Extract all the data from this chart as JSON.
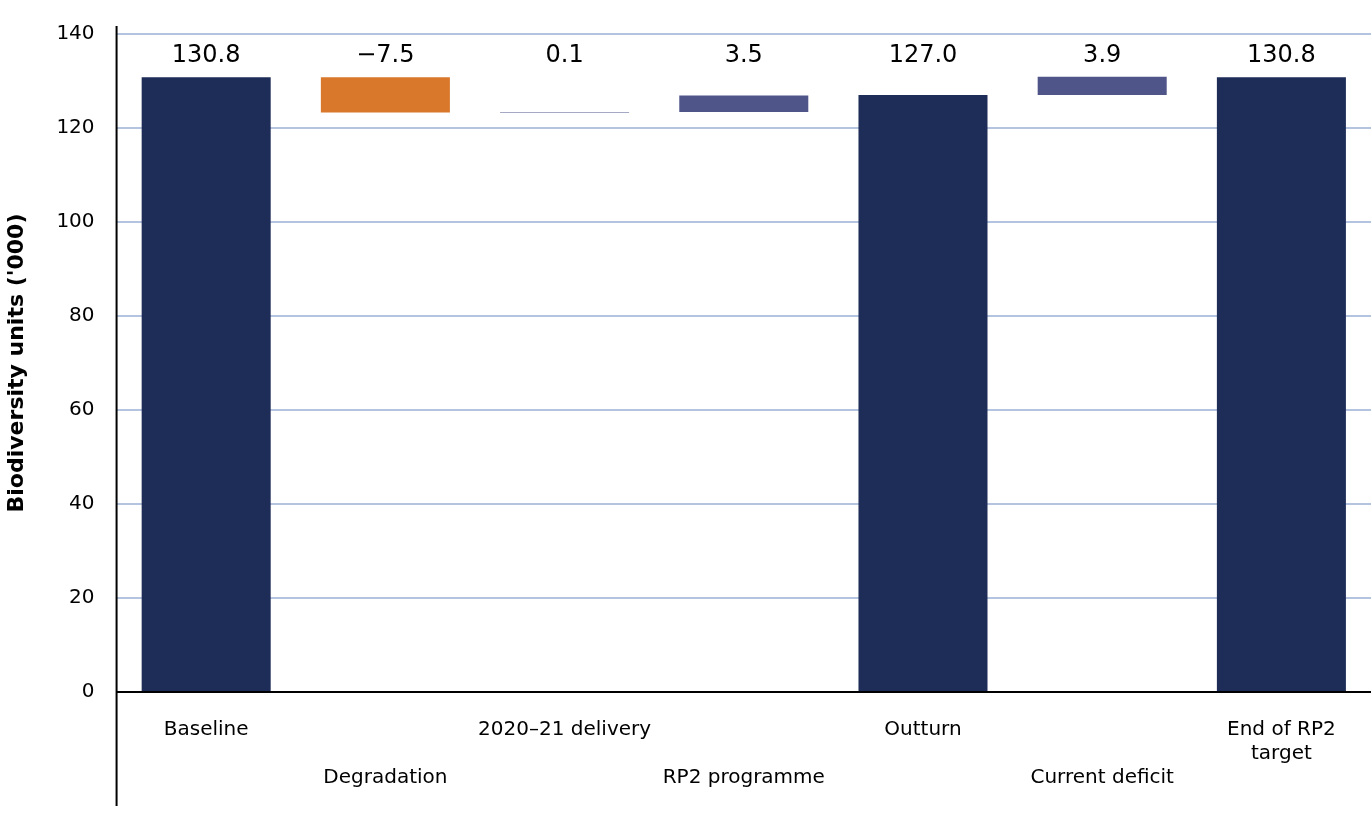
{
  "chart_data": {
    "type": "bar",
    "ylabel": "Biodiversity units ('000)",
    "categories": [
      "Baseline",
      "Degradation",
      "2020–21 delivery",
      "RP2 programme",
      "Outturn",
      "Current deficit",
      "End of RP2\ntarget"
    ],
    "values": [
      130.8,
      -7.5,
      0.1,
      3.5,
      127.0,
      3.9,
      130.8
    ],
    "base": [
      0,
      130.8,
      123.3,
      123.4,
      0,
      127.0,
      0
    ],
    "colors": [
      "#1e2c58",
      "#d9772b",
      "#4f5489",
      "#4f5489",
      "#1e2c58",
      "#4f5489",
      "#1e2c58"
    ],
    "value_labels": [
      "130.8",
      "−7.5",
      "0.1",
      "3.5",
      "127.0",
      "3.9",
      "130.8"
    ],
    "ylim": [
      0,
      140
    ],
    "yticks": [
      0,
      20,
      40,
      60,
      80,
      100,
      120,
      140
    ],
    "grid": "y",
    "legend": false
  }
}
